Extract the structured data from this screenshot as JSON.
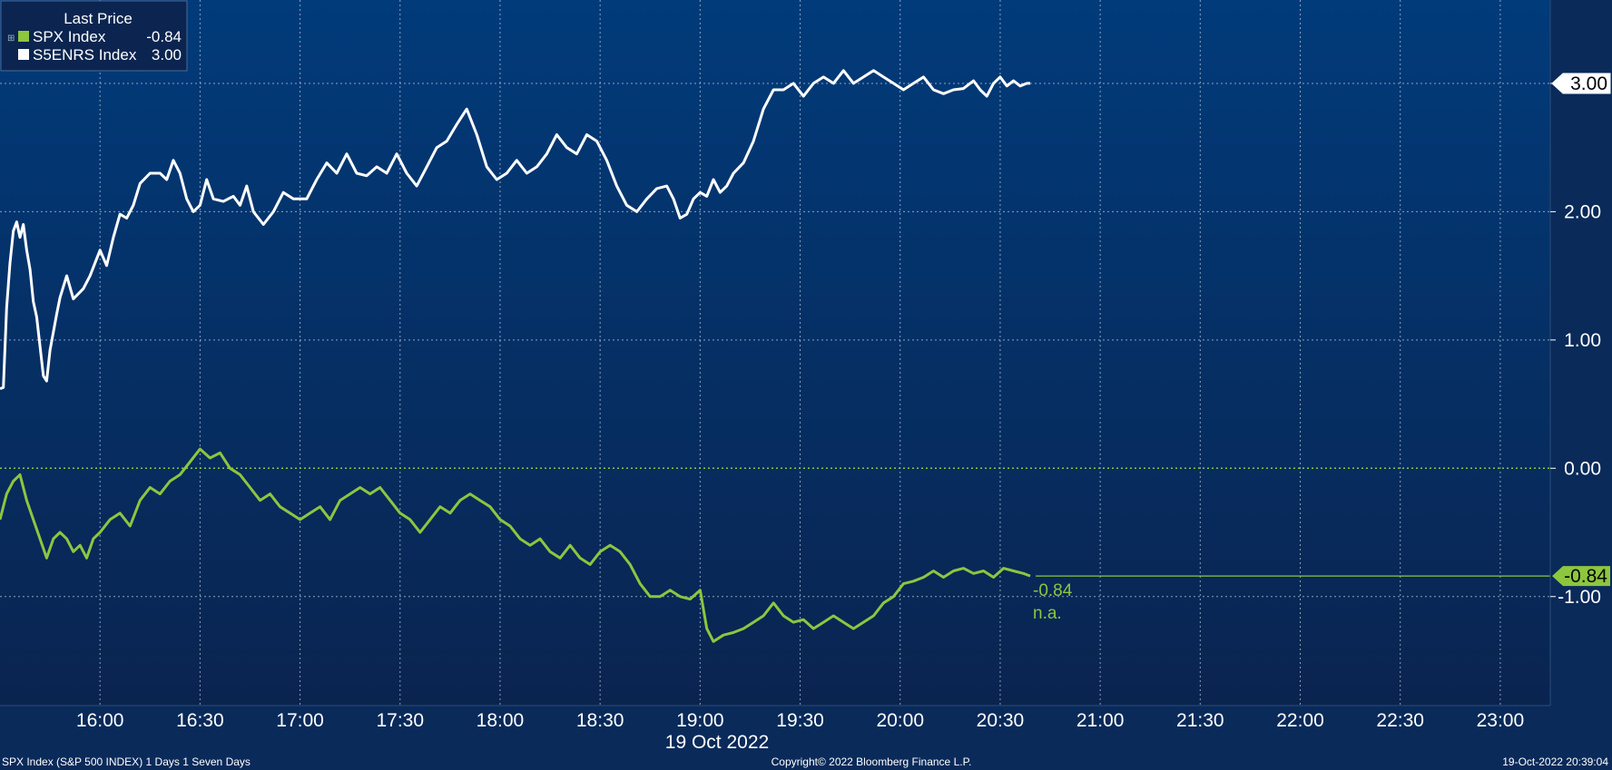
{
  "legend": {
    "title": "Last Price",
    "items": [
      {
        "name": "SPX Index",
        "value": "-0.84",
        "color": "#8dc63f"
      },
      {
        "name": "S5ENRS Index",
        "value": "3.00",
        "color": "#ffffff"
      }
    ]
  },
  "colors": {
    "spx": "#8dc63f",
    "s5enrs": "#ffffff",
    "background_top": "#013b7a",
    "background_bottom": "#0a2450"
  },
  "annotations": {
    "spx_last": "-0.84",
    "spx_change": "n.a.",
    "tag_s5enrs": "3.00",
    "tag_spx": "-0.84"
  },
  "x_axis": {
    "ticks": [
      "16:00",
      "16:30",
      "17:00",
      "17:30",
      "18:00",
      "18:30",
      "19:00",
      "19:30",
      "20:00",
      "20:30",
      "21:00",
      "21:30",
      "22:00",
      "22:30",
      "23:00"
    ],
    "date_label": "19 Oct 2022"
  },
  "y_axis": {
    "ticks": [
      "3.00",
      "2.00",
      "1.00",
      "0.00",
      "-1.00"
    ]
  },
  "footer": {
    "left": "SPX Index (S&P 500 INDEX) 1 Days 1 Seven Days",
    "center": "Copyright© 2022 Bloomberg Finance L.P.",
    "right": "19-Oct-2022 20:39:04"
  },
  "chart_data": {
    "type": "line",
    "title": "",
    "x_unit": "time of day (19 Oct 2022)",
    "xlim": [
      "15:30",
      "23:15"
    ],
    "ylim": [
      -1.85,
      3.65
    ],
    "y_ticks": [
      3,
      2,
      1,
      0,
      -1
    ],
    "grid": true,
    "legend_position": "top-left",
    "series": [
      {
        "name": "S5ENRS Index",
        "color": "#ffffff",
        "last": 3.0,
        "points": [
          [
            "15:30",
            0.62
          ],
          [
            "15:31",
            0.63
          ],
          [
            "15:32",
            1.25
          ],
          [
            "15:33",
            1.6
          ],
          [
            "15:34",
            1.85
          ],
          [
            "15:35",
            1.92
          ],
          [
            "15:36",
            1.8
          ],
          [
            "15:37",
            1.9
          ],
          [
            "15:38",
            1.7
          ],
          [
            "15:39",
            1.55
          ],
          [
            "15:40",
            1.3
          ],
          [
            "15:41",
            1.18
          ],
          [
            "15:42",
            0.95
          ],
          [
            "15:43",
            0.72
          ],
          [
            "15:44",
            0.68
          ],
          [
            "15:45",
            0.92
          ],
          [
            "15:47",
            1.2
          ],
          [
            "15:48",
            1.33
          ],
          [
            "15:50",
            1.5
          ],
          [
            "15:52",
            1.32
          ],
          [
            "15:55",
            1.4
          ],
          [
            "15:57",
            1.5
          ],
          [
            "16:00",
            1.7
          ],
          [
            "16:02",
            1.58
          ],
          [
            "16:04",
            1.8
          ],
          [
            "16:06",
            1.98
          ],
          [
            "16:08",
            1.95
          ],
          [
            "16:10",
            2.05
          ],
          [
            "16:12",
            2.22
          ],
          [
            "16:15",
            2.3
          ],
          [
            "16:18",
            2.3
          ],
          [
            "16:20",
            2.25
          ],
          [
            "16:22",
            2.4
          ],
          [
            "16:24",
            2.3
          ],
          [
            "16:26",
            2.1
          ],
          [
            "16:28",
            2.0
          ],
          [
            "16:30",
            2.05
          ],
          [
            "16:32",
            2.25
          ],
          [
            "16:34",
            2.1
          ],
          [
            "16:37",
            2.08
          ],
          [
            "16:40",
            2.12
          ],
          [
            "16:42",
            2.05
          ],
          [
            "16:44",
            2.2
          ],
          [
            "16:46",
            2.0
          ],
          [
            "16:49",
            1.9
          ],
          [
            "16:52",
            2.0
          ],
          [
            "16:55",
            2.15
          ],
          [
            "16:58",
            2.1
          ],
          [
            "17:02",
            2.1
          ],
          [
            "17:05",
            2.25
          ],
          [
            "17:08",
            2.38
          ],
          [
            "17:11",
            2.3
          ],
          [
            "17:14",
            2.45
          ],
          [
            "17:17",
            2.3
          ],
          [
            "17:20",
            2.28
          ],
          [
            "17:23",
            2.35
          ],
          [
            "17:26",
            2.3
          ],
          [
            "17:29",
            2.45
          ],
          [
            "17:32",
            2.3
          ],
          [
            "17:35",
            2.2
          ],
          [
            "17:38",
            2.35
          ],
          [
            "17:41",
            2.5
          ],
          [
            "17:44",
            2.55
          ],
          [
            "17:47",
            2.68
          ],
          [
            "17:50",
            2.8
          ],
          [
            "17:53",
            2.6
          ],
          [
            "17:56",
            2.35
          ],
          [
            "17:59",
            2.25
          ],
          [
            "18:02",
            2.3
          ],
          [
            "18:05",
            2.4
          ],
          [
            "18:08",
            2.3
          ],
          [
            "18:11",
            2.35
          ],
          [
            "18:14",
            2.45
          ],
          [
            "18:17",
            2.6
          ],
          [
            "18:20",
            2.5
          ],
          [
            "18:23",
            2.45
          ],
          [
            "18:26",
            2.6
          ],
          [
            "18:29",
            2.55
          ],
          [
            "18:32",
            2.4
          ],
          [
            "18:35",
            2.2
          ],
          [
            "18:38",
            2.05
          ],
          [
            "18:41",
            2.0
          ],
          [
            "18:44",
            2.1
          ],
          [
            "18:47",
            2.18
          ],
          [
            "18:50",
            2.2
          ],
          [
            "18:52",
            2.1
          ],
          [
            "18:54",
            1.95
          ],
          [
            "18:56",
            1.98
          ],
          [
            "18:58",
            2.1
          ],
          [
            "19:00",
            2.15
          ],
          [
            "19:02",
            2.12
          ],
          [
            "19:04",
            2.25
          ],
          [
            "19:06",
            2.15
          ],
          [
            "19:08",
            2.2
          ],
          [
            "19:10",
            2.3
          ],
          [
            "19:13",
            2.38
          ],
          [
            "19:16",
            2.55
          ],
          [
            "19:19",
            2.8
          ],
          [
            "19:22",
            2.95
          ],
          [
            "19:25",
            2.95
          ],
          [
            "19:28",
            3.0
          ],
          [
            "19:31",
            2.9
          ],
          [
            "19:34",
            3.0
          ],
          [
            "19:37",
            3.05
          ],
          [
            "19:40",
            3.0
          ],
          [
            "19:43",
            3.1
          ],
          [
            "19:46",
            3.0
          ],
          [
            "19:49",
            3.05
          ],
          [
            "19:52",
            3.1
          ],
          [
            "19:55",
            3.05
          ],
          [
            "19:58",
            3.0
          ],
          [
            "20:01",
            2.95
          ],
          [
            "20:04",
            3.0
          ],
          [
            "20:07",
            3.05
          ],
          [
            "20:10",
            2.95
          ],
          [
            "20:13",
            2.92
          ],
          [
            "20:16",
            2.95
          ],
          [
            "20:19",
            2.96
          ],
          [
            "20:22",
            3.02
          ],
          [
            "20:24",
            2.95
          ],
          [
            "20:26",
            2.9
          ],
          [
            "20:28",
            3.0
          ],
          [
            "20:30",
            3.05
          ],
          [
            "20:32",
            2.98
          ],
          [
            "20:34",
            3.02
          ],
          [
            "20:36",
            2.98
          ],
          [
            "20:38",
            3.0
          ],
          [
            "20:39",
            3.0
          ]
        ]
      },
      {
        "name": "SPX Index",
        "color": "#8dc63f",
        "last": -0.84,
        "points": [
          [
            "15:30",
            -0.4
          ],
          [
            "15:32",
            -0.2
          ],
          [
            "15:34",
            -0.1
          ],
          [
            "15:36",
            -0.05
          ],
          [
            "15:38",
            -0.25
          ],
          [
            "15:40",
            -0.4
          ],
          [
            "15:42",
            -0.55
          ],
          [
            "15:44",
            -0.7
          ],
          [
            "15:46",
            -0.55
          ],
          [
            "15:48",
            -0.5
          ],
          [
            "15:50",
            -0.55
          ],
          [
            "15:52",
            -0.65
          ],
          [
            "15:54",
            -0.6
          ],
          [
            "15:56",
            -0.7
          ],
          [
            "15:58",
            -0.55
          ],
          [
            "16:00",
            -0.5
          ],
          [
            "16:03",
            -0.4
          ],
          [
            "16:06",
            -0.35
          ],
          [
            "16:09",
            -0.45
          ],
          [
            "16:12",
            -0.25
          ],
          [
            "16:15",
            -0.15
          ],
          [
            "16:18",
            -0.2
          ],
          [
            "16:21",
            -0.1
          ],
          [
            "16:24",
            -0.05
          ],
          [
            "16:27",
            0.05
          ],
          [
            "16:30",
            0.15
          ],
          [
            "16:33",
            0.08
          ],
          [
            "16:36",
            0.12
          ],
          [
            "16:39",
            0.0
          ],
          [
            "16:42",
            -0.05
          ],
          [
            "16:45",
            -0.15
          ],
          [
            "16:48",
            -0.25
          ],
          [
            "16:51",
            -0.2
          ],
          [
            "16:54",
            -0.3
          ],
          [
            "16:57",
            -0.35
          ],
          [
            "17:00",
            -0.4
          ],
          [
            "17:03",
            -0.35
          ],
          [
            "17:06",
            -0.3
          ],
          [
            "17:09",
            -0.4
          ],
          [
            "17:12",
            -0.25
          ],
          [
            "17:15",
            -0.2
          ],
          [
            "17:18",
            -0.15
          ],
          [
            "17:21",
            -0.2
          ],
          [
            "17:24",
            -0.15
          ],
          [
            "17:27",
            -0.25
          ],
          [
            "17:30",
            -0.35
          ],
          [
            "17:33",
            -0.4
          ],
          [
            "17:36",
            -0.5
          ],
          [
            "17:39",
            -0.4
          ],
          [
            "17:42",
            -0.3
          ],
          [
            "17:45",
            -0.35
          ],
          [
            "17:48",
            -0.25
          ],
          [
            "17:51",
            -0.2
          ],
          [
            "17:54",
            -0.25
          ],
          [
            "17:57",
            -0.3
          ],
          [
            "18:00",
            -0.4
          ],
          [
            "18:03",
            -0.45
          ],
          [
            "18:06",
            -0.55
          ],
          [
            "18:09",
            -0.6
          ],
          [
            "18:12",
            -0.55
          ],
          [
            "18:15",
            -0.65
          ],
          [
            "18:18",
            -0.7
          ],
          [
            "18:21",
            -0.6
          ],
          [
            "18:24",
            -0.7
          ],
          [
            "18:27",
            -0.75
          ],
          [
            "18:30",
            -0.65
          ],
          [
            "18:33",
            -0.6
          ],
          [
            "18:36",
            -0.65
          ],
          [
            "18:39",
            -0.75
          ],
          [
            "18:42",
            -0.9
          ],
          [
            "18:45",
            -1.0
          ],
          [
            "18:48",
            -1.0
          ],
          [
            "18:51",
            -0.95
          ],
          [
            "18:54",
            -1.0
          ],
          [
            "18:57",
            -1.02
          ],
          [
            "19:00",
            -0.95
          ],
          [
            "19:02",
            -1.25
          ],
          [
            "19:04",
            -1.35
          ],
          [
            "19:07",
            -1.3
          ],
          [
            "19:10",
            -1.28
          ],
          [
            "19:13",
            -1.25
          ],
          [
            "19:16",
            -1.2
          ],
          [
            "19:19",
            -1.15
          ],
          [
            "19:22",
            -1.05
          ],
          [
            "19:25",
            -1.15
          ],
          [
            "19:28",
            -1.2
          ],
          [
            "19:31",
            -1.18
          ],
          [
            "19:34",
            -1.25
          ],
          [
            "19:37",
            -1.2
          ],
          [
            "19:40",
            -1.15
          ],
          [
            "19:43",
            -1.2
          ],
          [
            "19:46",
            -1.25
          ],
          [
            "19:49",
            -1.2
          ],
          [
            "19:52",
            -1.15
          ],
          [
            "19:55",
            -1.05
          ],
          [
            "19:58",
            -1.0
          ],
          [
            "20:01",
            -0.9
          ],
          [
            "20:04",
            -0.88
          ],
          [
            "20:07",
            -0.85
          ],
          [
            "20:10",
            -0.8
          ],
          [
            "20:13",
            -0.85
          ],
          [
            "20:16",
            -0.8
          ],
          [
            "20:19",
            -0.78
          ],
          [
            "20:22",
            -0.82
          ],
          [
            "20:25",
            -0.8
          ],
          [
            "20:28",
            -0.85
          ],
          [
            "20:31",
            -0.78
          ],
          [
            "20:34",
            -0.8
          ],
          [
            "20:37",
            -0.82
          ],
          [
            "20:39",
            -0.84
          ]
        ]
      }
    ]
  }
}
